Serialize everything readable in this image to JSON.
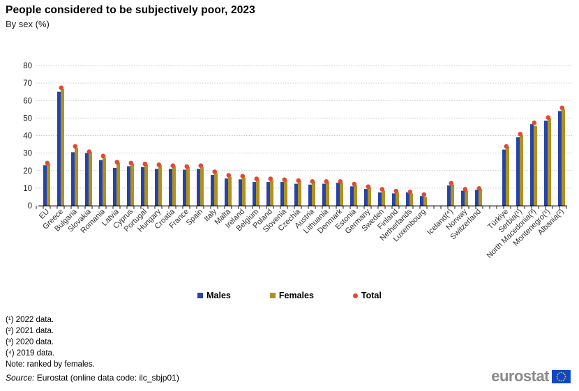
{
  "title": "People considered to be subjectively poor, 2023",
  "subtitle": "By sex (%)",
  "legend": {
    "males": "Males",
    "females": "Females",
    "total": "Total"
  },
  "footnotes": [
    "(¹) 2022 data.",
    "(²) 2021 data.",
    "(³) 2020 data.",
    "(⁴) 2019 data."
  ],
  "note": "Note: ranked by females.",
  "source_label": "Source:",
  "source_text": " Eurostat (online data code: ilc_sbjp01)",
  "logo": {
    "text": "eurostat"
  },
  "colors": {
    "males": "#2644A7",
    "females": "#B09120",
    "total": "#E04A35",
    "grid": "#c9c9c9",
    "axis": "#000000",
    "label": "#1a1a1a",
    "flag_blue": "#0E47CB",
    "flag_stars": "#FFDD00",
    "wordmark_gray": "#8a8a8a"
  },
  "chart_data": {
    "type": "bar",
    "title": "People considered to be subjectively poor, 2023",
    "subtitle": "By sex (%)",
    "ylabel": "%",
    "ylim": [
      0,
      80
    ],
    "yticks": [
      0,
      10,
      20,
      30,
      40,
      50,
      60,
      70,
      80
    ],
    "grid": "horizontal",
    "legend_position": "bottom",
    "note": "ranked by females; gaps separate EU members, EFTA countries and candidate countries",
    "categories": [
      "EU",
      "Greece",
      "Bulgaria",
      "Slovakia",
      "Romania",
      "Latvia",
      "Cyprus",
      "Portugal",
      "Hungary",
      "Croatia",
      "France",
      "Spain",
      "Italy",
      "Malta",
      "Ireland",
      "Belgium",
      "Poland",
      "Slovenia",
      "Czechia",
      "Austria",
      "Lithuania",
      "Denmark",
      "Estonia",
      "Germany",
      "Sweden",
      "Finland",
      "Netherlands",
      "Luxembourg",
      "Iceland(⁴)",
      "Norway",
      "Switzerland",
      "Türkiye",
      "Serbia(¹)",
      "North Macedonia(³)",
      "Montenegro(¹)",
      "Albania(²)"
    ],
    "gap_after_indices": [
      27,
      30
    ],
    "series": [
      {
        "name": "Males",
        "values": [
          23,
          65,
          30.5,
          30,
          26,
          21.5,
          22.5,
          22,
          21,
          21,
          20.5,
          21,
          17.5,
          15.5,
          15,
          13.5,
          13.5,
          13.5,
          12.5,
          12,
          12.5,
          13,
          11,
          9.5,
          7.5,
          7,
          7.5,
          5.5,
          11.5,
          8.5,
          9,
          32,
          39,
          46.5,
          48.5,
          54
        ]
      },
      {
        "name": "Females",
        "values": [
          24,
          66.5,
          33,
          30.5,
          27.5,
          24.5,
          24,
          23.5,
          23,
          22.5,
          22,
          22,
          18.5,
          16.5,
          16,
          15,
          14.5,
          14.5,
          14,
          13.5,
          13.5,
          13,
          11.5,
          10.5,
          8.5,
          7.5,
          7,
          5,
          12,
          8.5,
          9.5,
          33.5,
          40,
          45.5,
          50,
          55
        ]
      },
      {
        "name": "Total",
        "values": [
          24,
          67,
          33.5,
          30.5,
          28,
          24.5,
          24,
          23.5,
          23,
          22.5,
          22,
          22.5,
          19,
          17,
          16.5,
          15,
          15,
          14.5,
          14,
          13.5,
          13.5,
          13.5,
          12,
          10.5,
          9,
          8,
          7.5,
          6,
          12.5,
          9,
          9.5,
          33.5,
          40.5,
          47,
          50,
          55.5
        ]
      }
    ]
  }
}
